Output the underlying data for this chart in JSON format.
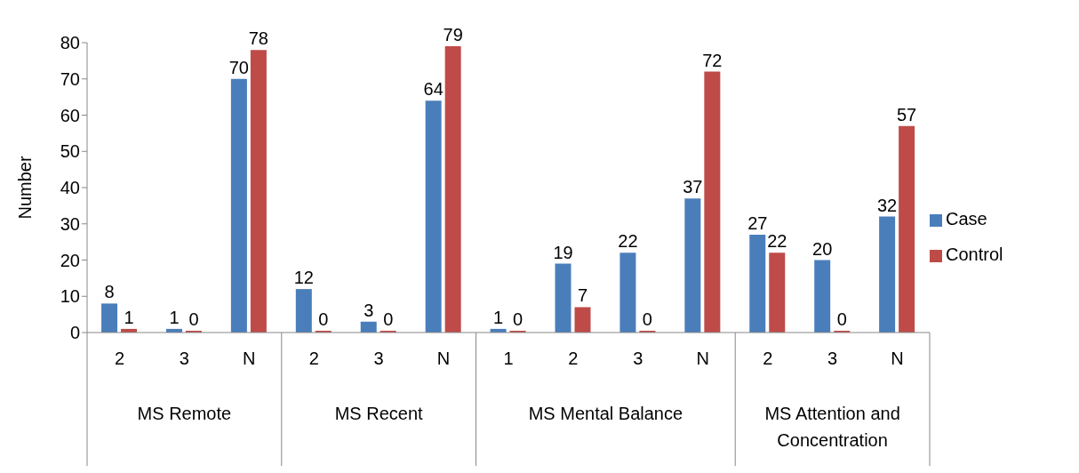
{
  "chart_data": {
    "type": "bar",
    "ylabel": "Number",
    "categories": [
      "2",
      "3",
      "N",
      "2",
      "3",
      "N",
      "1",
      "2",
      "3",
      "N",
      "2",
      "3",
      "N"
    ],
    "series": [
      {
        "name": "Case",
        "color": "#4a7ebb",
        "values": [
          8,
          1,
          70,
          12,
          3,
          64,
          1,
          19,
          22,
          37,
          27,
          20,
          32
        ]
      },
      {
        "name": "Control",
        "color": "#be4b48",
        "values": [
          1,
          0,
          78,
          0,
          0,
          79,
          0,
          7,
          0,
          72,
          22,
          0,
          57
        ]
      }
    ],
    "annotations": [
      "MS Remote",
      "MS Recent",
      "MS Mental Balance",
      "MS Attention and Concentration"
    ],
    "ylim": [
      0,
      80
    ],
    "yticks": [
      0,
      10,
      20,
      30,
      40,
      50,
      60,
      70,
      80
    ],
    "grid": false,
    "legend": "right",
    "data_labels": true
  }
}
